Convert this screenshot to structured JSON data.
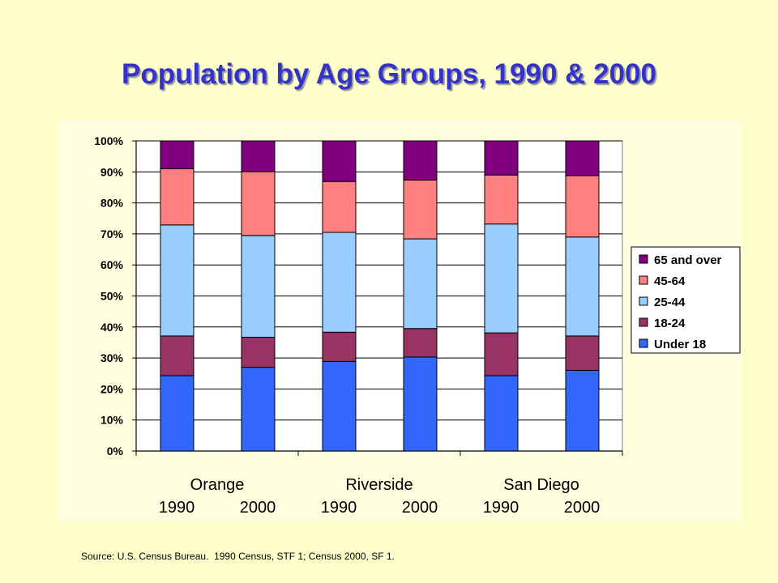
{
  "slide": {
    "title": "Population by Age Groups, 1990 & 2000",
    "source": "Source: U.S. Census Bureau.  1990 Census, STF 1; Census 2000, SF 1."
  },
  "colors": {
    "background": "#ffffcc",
    "title": "#3333cc",
    "plot_area": "#ffffff",
    "grid": "#000000"
  },
  "chart_data": {
    "type": "bar",
    "stacked": true,
    "percent": true,
    "groups": [
      "Orange",
      "Riverside",
      "San Diego"
    ],
    "years": [
      "1990",
      "2000"
    ],
    "categories": [
      "Orange 1990",
      "Orange 2000",
      "Riverside 1990",
      "Riverside 2000",
      "San Diego 1990",
      "San Diego 2000"
    ],
    "ylim": [
      0,
      100
    ],
    "yticks": [
      "0%",
      "10%",
      "20%",
      "30%",
      "40%",
      "50%",
      "60%",
      "70%",
      "80%",
      "90%",
      "100%"
    ],
    "grid": true,
    "legend_position": "right",
    "series": [
      {
        "name": "Under 18",
        "color": "#3366ff",
        "values": [
          24.3,
          27.0,
          28.9,
          30.3,
          24.3,
          26.0
        ]
      },
      {
        "name": "18-24",
        "color": "#993366",
        "values": [
          12.8,
          9.7,
          9.4,
          9.2,
          13.8,
          11.1
        ]
      },
      {
        "name": "25-44",
        "color": "#99ccff",
        "values": [
          35.8,
          32.8,
          32.2,
          28.9,
          35.1,
          31.9
        ]
      },
      {
        "name": "45-64",
        "color": "#ff8080",
        "values": [
          18.1,
          20.6,
          16.4,
          19.0,
          15.8,
          19.8
        ]
      },
      {
        "name": "65 and over",
        "color": "#800080",
        "values": [
          9.0,
          9.9,
          13.1,
          12.6,
          11.0,
          11.2
        ]
      }
    ],
    "legend_order": [
      "65 and over",
      "45-64",
      "25-44",
      "18-24",
      "Under 18"
    ]
  }
}
